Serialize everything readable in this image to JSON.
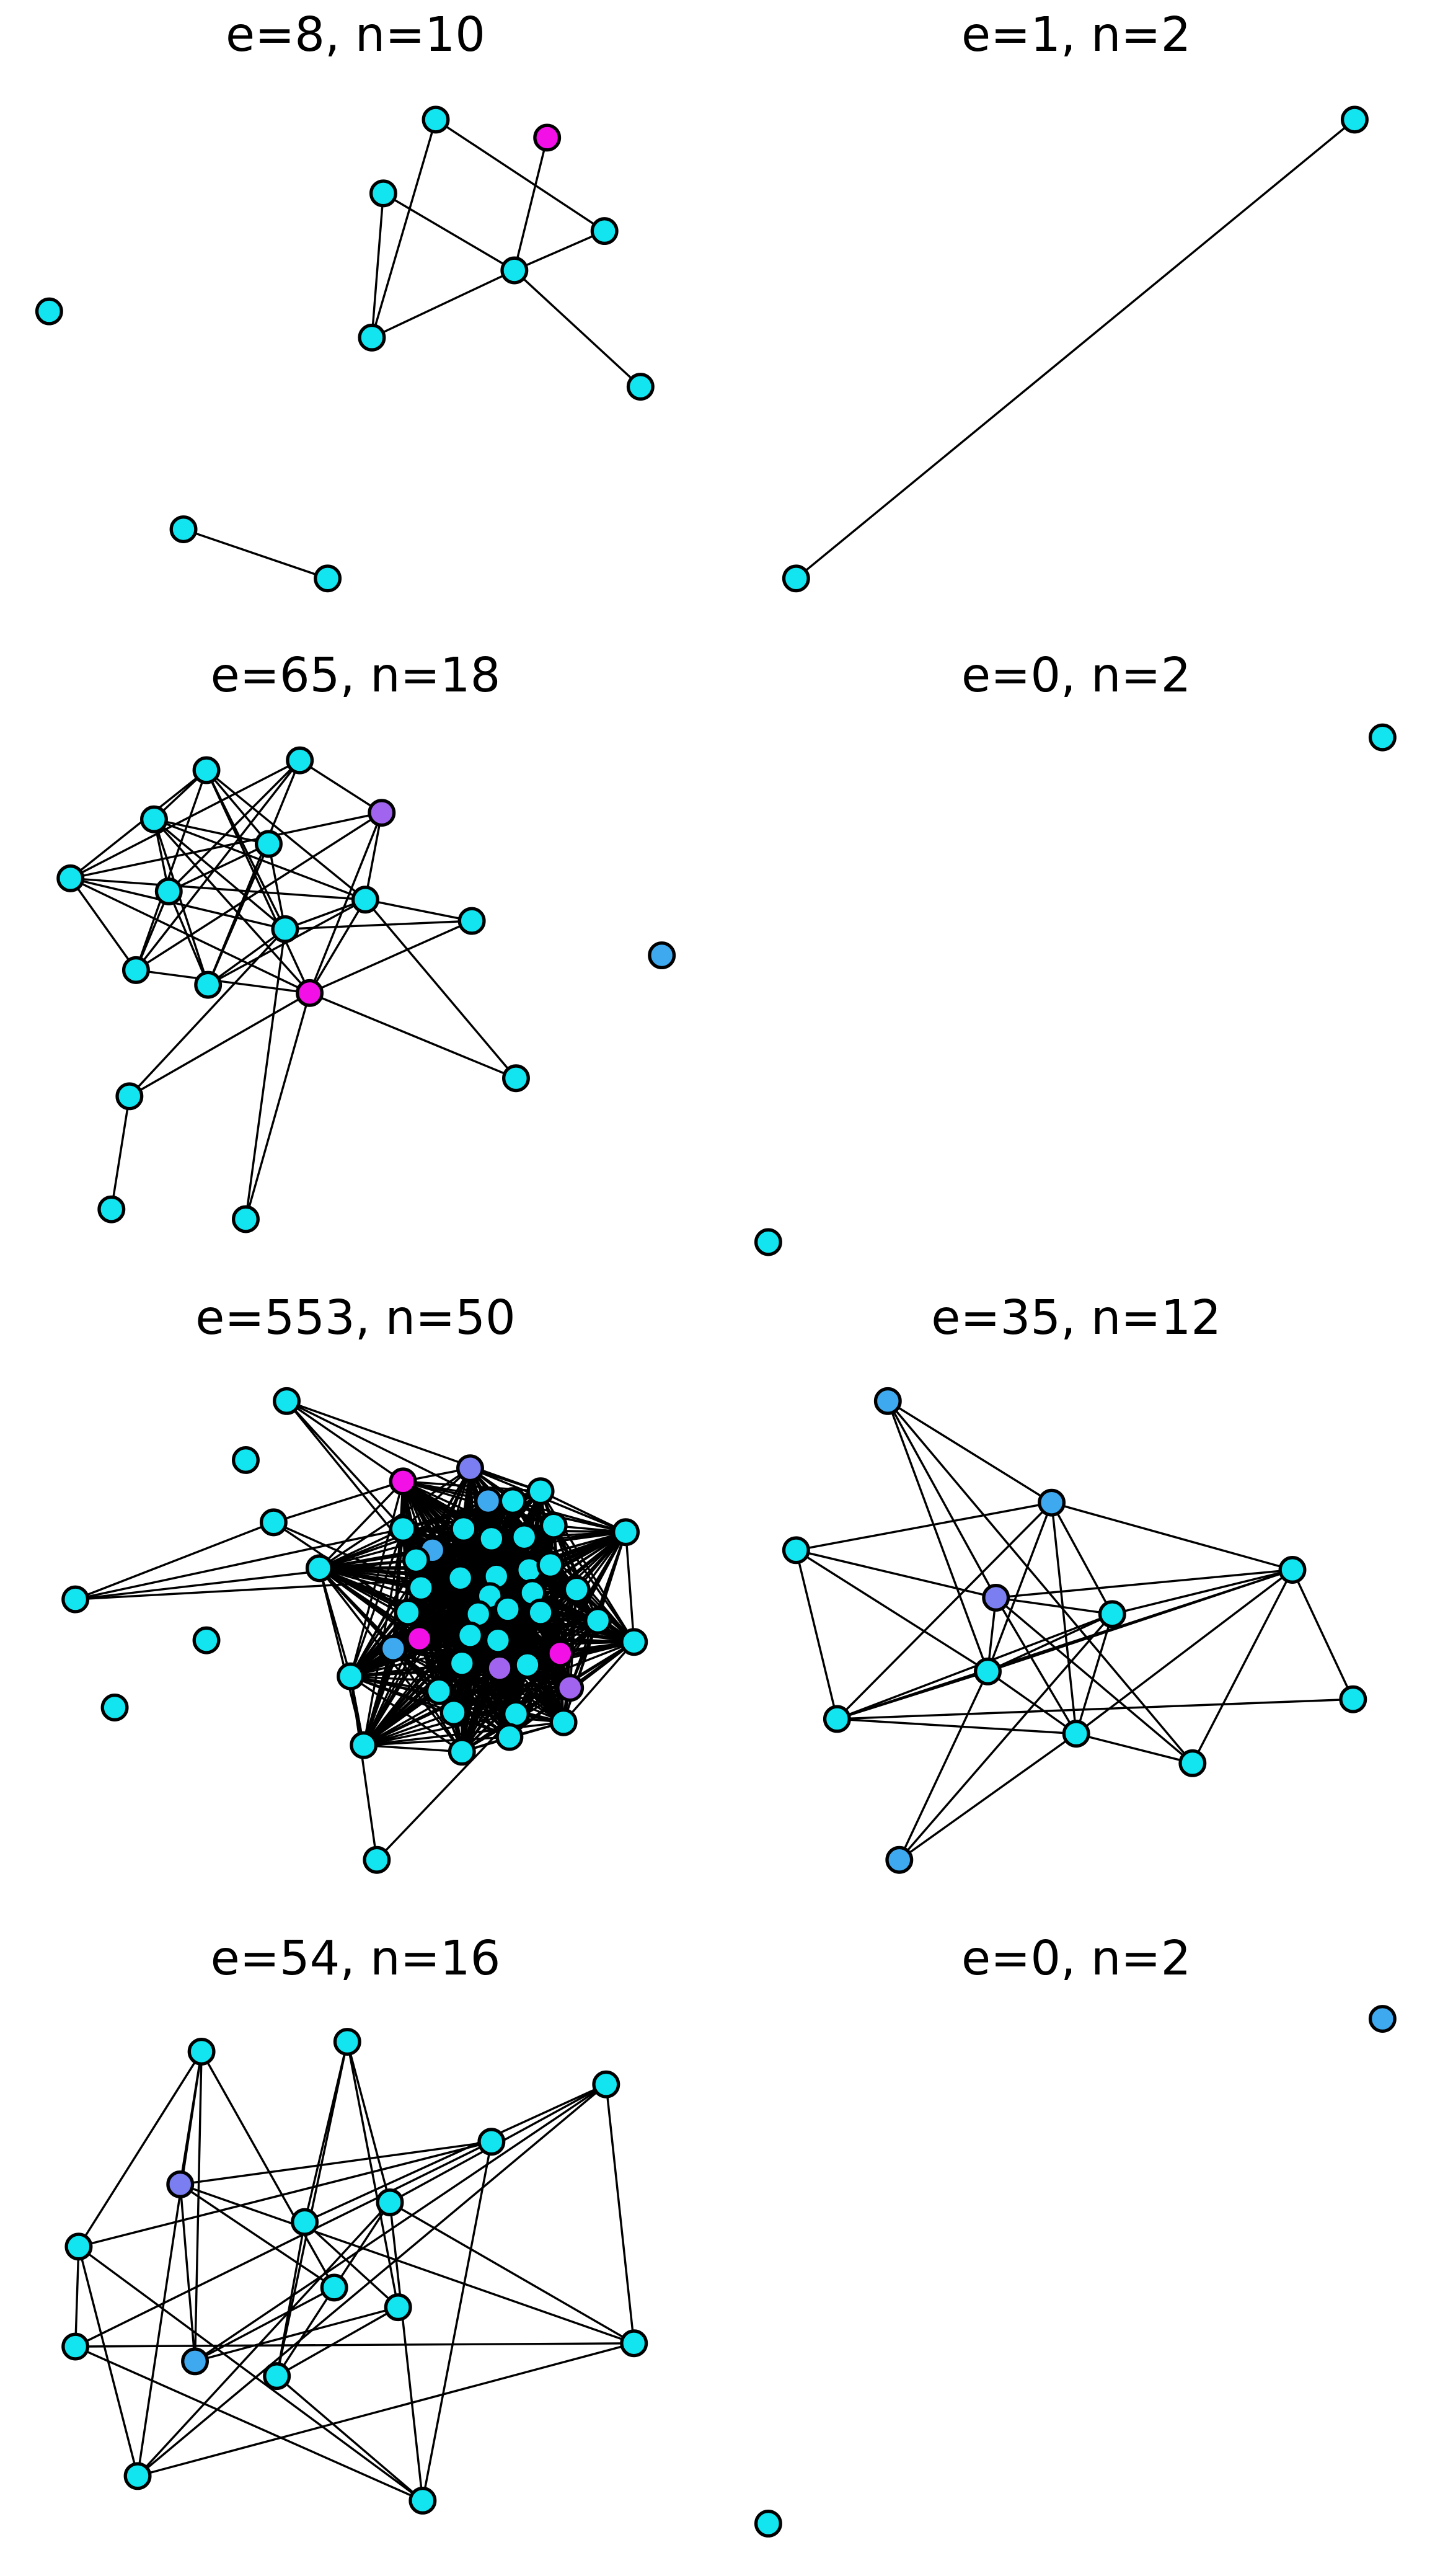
{
  "panels": [
    {
      "title": "e=8, n=10"
    },
    {
      "title": "e=1, n=2"
    },
    {
      "title": "e=65, n=18"
    },
    {
      "title": "e=0, n=2"
    },
    {
      "title": "e=553, n=50"
    },
    {
      "title": "e=35, n=12"
    },
    {
      "title": "e=54, n=16"
    },
    {
      "title": "e=0, n=2"
    }
  ]
}
